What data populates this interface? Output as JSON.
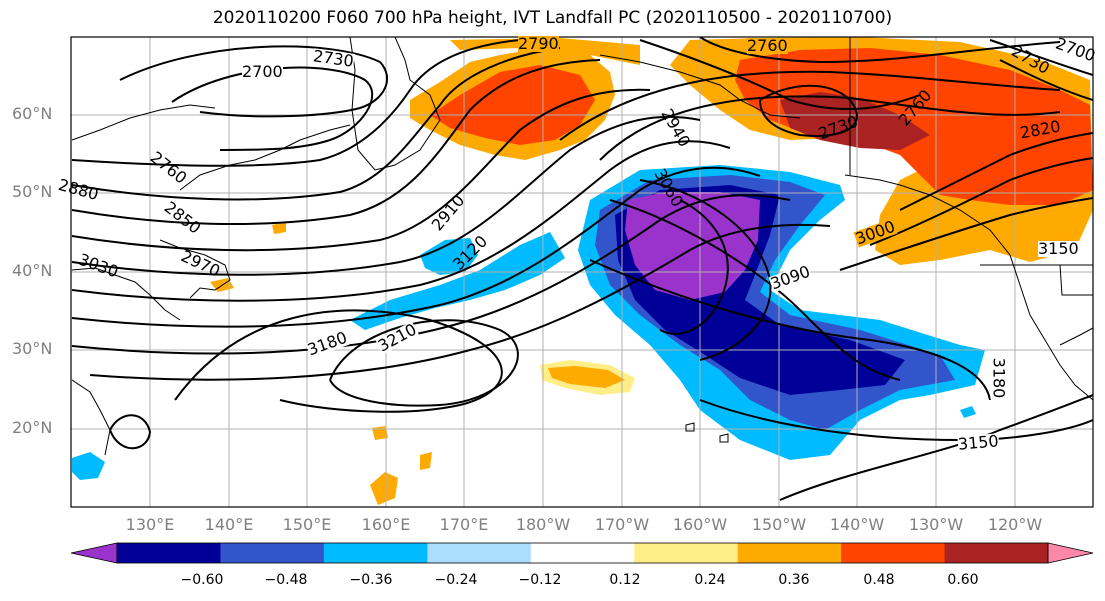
{
  "title": "2020110200 F060 700 hPa height, IVT Landfall PC (2020110500 - 2020110700)",
  "lat_labels": [
    "60°N",
    "50°N",
    "40°N",
    "30°N",
    "20°N"
  ],
  "lon_labels": [
    "130°E",
    "140°E",
    "150°E",
    "160°E",
    "170°E",
    "180°W",
    "170°W",
    "160°W",
    "150°W",
    "140°W",
    "130°W",
    "120°W"
  ],
  "contour_labels": [
    "2700",
    "2730",
    "2760",
    "2790",
    "2760",
    "2730",
    "2700",
    "2760",
    "2850",
    "2970",
    "3030",
    "2940",
    "2910",
    "3120",
    "3180",
    "3210",
    "2760",
    "2730",
    "2820",
    "3060",
    "3000",
    "3090",
    "3150",
    "3180",
    "3150",
    "2880"
  ],
  "colorbar": {
    "colors": [
      "#9933cc",
      "#000099",
      "#3355cc",
      "#00bbff",
      "#aaddff",
      "#ffffff",
      "#ffee88",
      "#ffaa00",
      "#ff4400",
      "#aa2222",
      "#ff88aa"
    ],
    "tick_labels": [
      "−0.60",
      "−0.48",
      "−0.36",
      "−0.24",
      "−0.12",
      "0.12",
      "0.24",
      "0.36",
      "0.48",
      "0.60"
    ]
  }
}
